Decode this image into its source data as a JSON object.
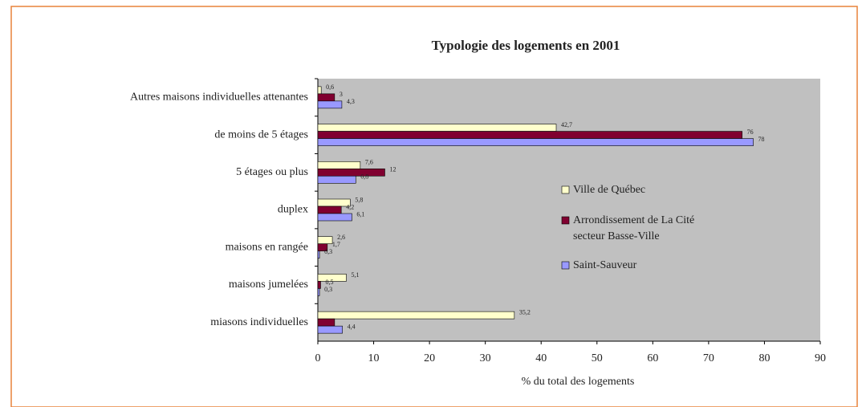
{
  "chart_data": {
    "type": "bar",
    "orientation": "horizontal",
    "title": "Typologie des logements en 2001",
    "x_label": "% du total des logements",
    "categories": [
      "Autres maisons individuelles attenantes",
      "de moins de 5 étages",
      "5 étages ou plus",
      "duplex",
      "maisons en rangée",
      "maisons jumelées",
      "miasons individuelles"
    ],
    "series": [
      {
        "name": "Ville de Québec",
        "color": "#ffffcc",
        "values": [
          0.6,
          42.7,
          7.6,
          5.8,
          2.6,
          5.1,
          35.2
        ],
        "value_labels": [
          "0,6",
          "42,7",
          "7,6",
          "5,8",
          "2,6",
          "5,1",
          "35,2"
        ]
      },
      {
        "name": "Arrondissement de La Cité secteur Basse-Ville",
        "color": "#800030",
        "values": [
          3,
          76,
          12,
          4.2,
          1.7,
          0.5,
          3
        ],
        "value_labels": [
          "3",
          "76",
          "12",
          "4,2",
          "1,7",
          "0,5",
          null
        ]
      },
      {
        "name": "Saint-Sauveur",
        "color": "#9999ff",
        "values": [
          4.3,
          78,
          6.8,
          6.1,
          0.3,
          0.3,
          4.4
        ],
        "value_labels": [
          "4,3",
          "78",
          "6,8",
          "6,1",
          "0,3",
          "0,3",
          "4,4"
        ]
      }
    ],
    "xlim": [
      0,
      90
    ],
    "xticks": [
      0,
      10,
      20,
      30,
      40,
      50,
      60,
      70,
      80,
      90
    ],
    "legend": "right"
  }
}
